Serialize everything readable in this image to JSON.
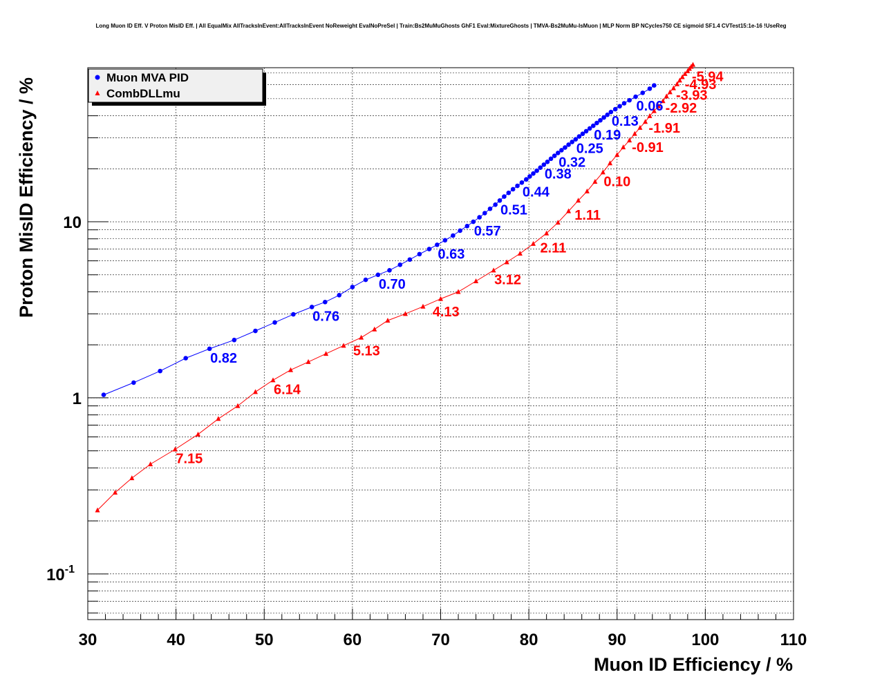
{
  "chart_data": {
    "type": "scatter",
    "title": "Long Muon ID Eff. V Proton MisID Eff. | All EqualMix AllTracksInEvent:AllTracksInEvent NoReweight EvalNoPreSel | Train:Bs2MuMuGhosts GhF1 Eval:MixtureGhosts | TMVA-Bs2MuMu-IsMuon | MLP Norm BP NCycles750 CE sigmoid SF1.4 CVTest15:1e-16 !UseReg",
    "xlabel": "Muon ID Efficiency / %",
    "ylabel": "Proton MisID Efficiency / %",
    "xlim": [
      30,
      110
    ],
    "ylim": [
      0.055,
      75
    ],
    "yscale": "log",
    "grid": true,
    "legend_position": "top-left",
    "x_ticks": [
      "30",
      "40",
      "50",
      "60",
      "70",
      "80",
      "90",
      "100",
      "110"
    ],
    "y_ticks": [
      {
        "value": 0.1,
        "label": "10",
        "sup": "-1"
      },
      {
        "value": 1,
        "label": "1",
        "sup": ""
      },
      {
        "value": 10,
        "label": "10",
        "sup": ""
      }
    ],
    "series": [
      {
        "name": "Muon MVA PID",
        "color": "#0000ff",
        "marker": "circle",
        "x": [
          31.8,
          35.2,
          38.2,
          41.1,
          43.8,
          46.6,
          49.0,
          51.2,
          53.3,
          55.4,
          56.9,
          58.5,
          60.0,
          61.5,
          62.9,
          64.2,
          65.4,
          66.5,
          67.6,
          68.7,
          69.6,
          70.5,
          71.4,
          72.2,
          73.0,
          73.7,
          74.4,
          75.0,
          75.6,
          76.2,
          76.7,
          77.2,
          77.7,
          78.2,
          78.7,
          79.2,
          79.7,
          80.1,
          80.5,
          80.9,
          81.3,
          81.7,
          82.1,
          82.5,
          82.9,
          83.3,
          83.7,
          84.1,
          84.5,
          84.9,
          85.3,
          85.7,
          86.1,
          86.5,
          86.9,
          87.3,
          87.7,
          88.1,
          88.5,
          88.9,
          89.3,
          89.8,
          90.3,
          90.8,
          91.4,
          92.1,
          92.9,
          93.7,
          94.2
        ],
        "y": [
          1.04,
          1.22,
          1.42,
          1.68,
          1.9,
          2.13,
          2.4,
          2.68,
          2.98,
          3.28,
          3.5,
          3.83,
          4.26,
          4.68,
          5.0,
          5.3,
          5.7,
          6.1,
          6.55,
          7.0,
          7.4,
          7.85,
          8.35,
          8.9,
          9.45,
          10.0,
          10.6,
          11.2,
          11.85,
          12.5,
          13.2,
          13.9,
          14.6,
          15.3,
          16.0,
          16.7,
          17.4,
          18.1,
          18.8,
          19.5,
          20.3,
          21.1,
          21.9,
          22.8,
          23.7,
          24.6,
          25.5,
          26.4,
          27.4,
          28.4,
          29.4,
          30.5,
          31.6,
          32.7,
          33.9,
          35.1,
          36.4,
          37.7,
          39.1,
          40.5,
          42.0,
          43.6,
          45.3,
          47.1,
          49.0,
          51.3,
          54.0,
          57.0,
          59.5
        ],
        "annotations": [
          {
            "text": "0.82",
            "x": 43.8,
            "y": 1.9
          },
          {
            "text": "0.76",
            "x": 55.4,
            "y": 3.28
          },
          {
            "text": "0.70",
            "x": 62.9,
            "y": 5.0
          },
          {
            "text": "0.63",
            "x": 69.6,
            "y": 7.4
          },
          {
            "text": "0.57",
            "x": 73.7,
            "y": 10.0
          },
          {
            "text": "0.51",
            "x": 76.7,
            "y": 13.2
          },
          {
            "text": "0.44",
            "x": 79.2,
            "y": 16.7
          },
          {
            "text": "0.38",
            "x": 81.7,
            "y": 21.1
          },
          {
            "text": "0.32",
            "x": 83.3,
            "y": 24.6
          },
          {
            "text": "0.25",
            "x": 85.3,
            "y": 29.4
          },
          {
            "text": "0.19",
            "x": 87.3,
            "y": 35.1
          },
          {
            "text": "0.13",
            "x": 89.3,
            "y": 42.0
          },
          {
            "text": "0.06",
            "x": 92.1,
            "y": 51.3
          }
        ]
      },
      {
        "name": "CombDLLmu",
        "color": "#ff0000",
        "marker": "triangle",
        "x": [
          31.1,
          33.1,
          35.0,
          37.1,
          39.9,
          42.5,
          44.8,
          47.0,
          49.0,
          51.0,
          53.0,
          55.0,
          57.0,
          59.0,
          61.0,
          62.5,
          64.0,
          66.0,
          68.0,
          70.0,
          72.0,
          74.0,
          76.0,
          77.5,
          79.0,
          80.5,
          82.0,
          83.3,
          84.5,
          85.6,
          86.6,
          87.5,
          88.4,
          89.2,
          90.0,
          90.7,
          91.4,
          92.0,
          92.6,
          93.2,
          93.7,
          94.2,
          94.7,
          95.2,
          95.6,
          96.0,
          96.4,
          96.8,
          97.1,
          97.4,
          97.7,
          98.0,
          98.2,
          98.4,
          98.6
        ],
        "y": [
          0.23,
          0.29,
          0.35,
          0.42,
          0.51,
          0.62,
          0.76,
          0.9,
          1.08,
          1.26,
          1.44,
          1.6,
          1.78,
          1.98,
          2.2,
          2.45,
          2.75,
          3.0,
          3.3,
          3.65,
          4.0,
          4.6,
          5.3,
          5.9,
          6.6,
          7.5,
          8.6,
          9.9,
          11.5,
          13.2,
          14.9,
          16.9,
          19.1,
          21.5,
          24.0,
          26.5,
          29.0,
          31.6,
          34.2,
          37.0,
          39.9,
          42.6,
          45.4,
          48.5,
          51.6,
          54.5,
          57.4,
          60.5,
          63.5,
          66.4,
          69.2,
          71.8,
          74.0,
          76.0,
          78.0
        ],
        "annotations": [
          {
            "text": "7.15",
            "x": 39.9,
            "y": 0.51
          },
          {
            "text": "6.14",
            "x": 51.0,
            "y": 1.26
          },
          {
            "text": "5.13",
            "x": 60.0,
            "y": 2.09
          },
          {
            "text": "4.13",
            "x": 69.0,
            "y": 3.47
          },
          {
            "text": "3.12",
            "x": 76.0,
            "y": 5.3
          },
          {
            "text": "2.11",
            "x": 81.2,
            "y": 8.0
          },
          {
            "text": "1.11",
            "x": 85.1,
            "y": 12.3
          },
          {
            "text": "0.10",
            "x": 88.4,
            "y": 19.1
          },
          {
            "text": "-0.91",
            "x": 91.6,
            "y": 29.8
          },
          {
            "text": "-1.91",
            "x": 93.5,
            "y": 38.5
          },
          {
            "text": "-2.92",
            "x": 95.4,
            "y": 50.0
          },
          {
            "text": "-3.93",
            "x": 96.6,
            "y": 59.0
          },
          {
            "text": "-4.93",
            "x": 97.6,
            "y": 68.0
          },
          {
            "text": "-5.94",
            "x": 98.4,
            "y": 75.5
          }
        ]
      }
    ]
  }
}
